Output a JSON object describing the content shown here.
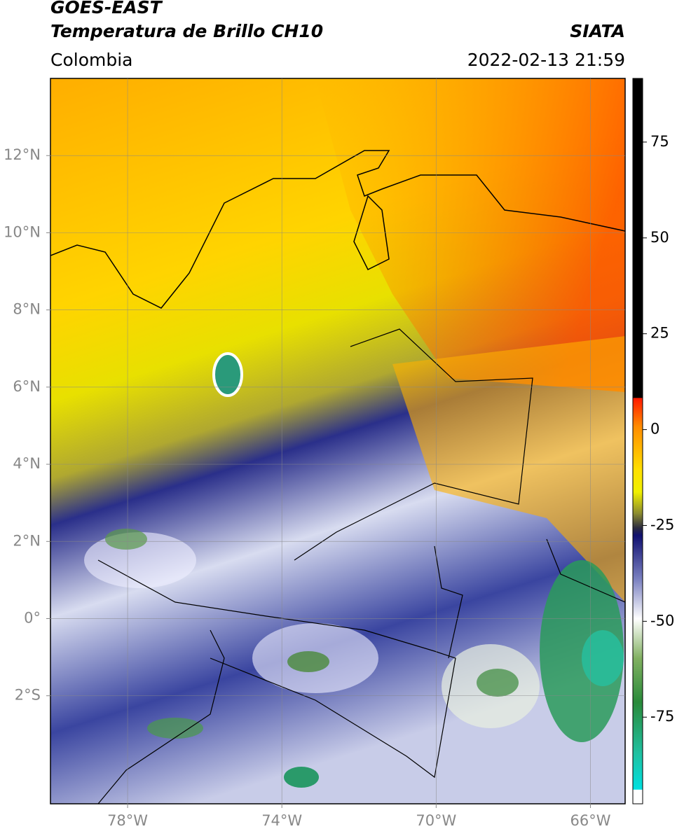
{
  "header": {
    "title": "GOES-EAST",
    "subtitle": "Temperatura de Brillo CH10",
    "source": "SIATA",
    "region": "Colombia",
    "timestamp": "2022-02-13 21:59"
  },
  "map": {
    "xlim": [
      -80,
      -65.1
    ],
    "ylim": [
      -4.8,
      14
    ],
    "xticks": [
      {
        "value": -78,
        "label": "78°W"
      },
      {
        "value": -74,
        "label": "74°W"
      },
      {
        "value": -70,
        "label": "70°W"
      },
      {
        "value": -66,
        "label": "66°W"
      }
    ],
    "yticks": [
      {
        "value": 12,
        "label": "12°N"
      },
      {
        "value": 10,
        "label": "10°N"
      },
      {
        "value": 8,
        "label": "8°N"
      },
      {
        "value": 6,
        "label": "6°N"
      },
      {
        "value": 4,
        "label": "4°N"
      },
      {
        "value": 2,
        "label": "2°N"
      },
      {
        "value": 0,
        "label": "0°"
      },
      {
        "value": -2,
        "label": "2°S"
      }
    ],
    "grid": true
  },
  "colorbar": {
    "lim": [
      -97.6,
      91.6
    ],
    "ticks": [
      75,
      50,
      25,
      0,
      -25,
      -50,
      -75
    ]
  }
}
